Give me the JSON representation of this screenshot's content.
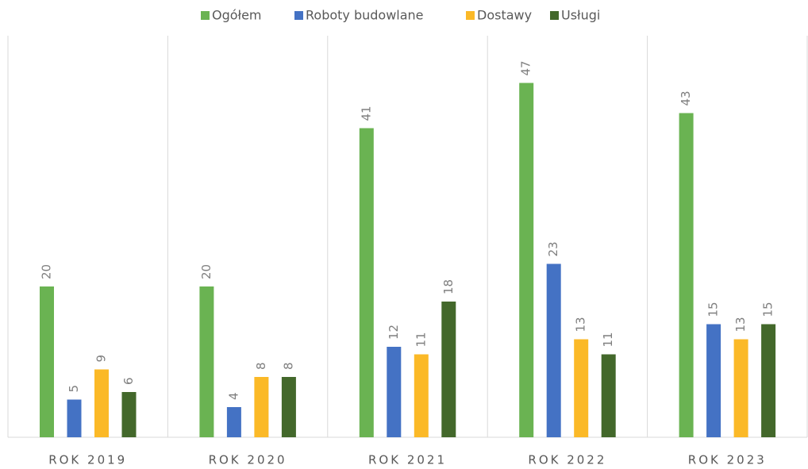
{
  "chart_data": {
    "type": "bar",
    "categories": [
      "ROK 2019",
      "ROK 2020",
      "ROK 2021",
      "ROK 2022",
      "ROK 2023"
    ],
    "series": [
      {
        "name": "Ogółem",
        "color": "#6ab352",
        "values": [
          20,
          20,
          41,
          47,
          43
        ]
      },
      {
        "name": "Roboty budowlane",
        "color": "#4472c4",
        "values": [
          5,
          4,
          12,
          23,
          15
        ]
      },
      {
        "name": "Dostawy",
        "color": "#fbb927",
        "values": [
          9,
          8,
          11,
          13,
          13
        ]
      },
      {
        "name": "Usługi",
        "color": "#43682b",
        "values": [
          6,
          8,
          18,
          11,
          15
        ]
      }
    ],
    "legend": "top"
  }
}
